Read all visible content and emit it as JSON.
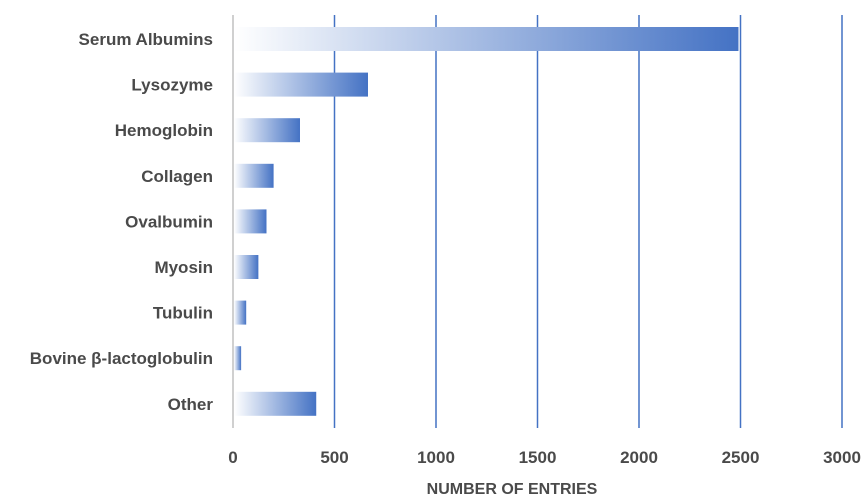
{
  "chart_data": {
    "type": "bar",
    "orientation": "horizontal",
    "categories": [
      "Serum Albumins",
      "Lysozyme",
      "Hemoglobin",
      "Collagen",
      "Ovalbumin",
      "Myosin",
      "Tubulin",
      "Bovine β-lactoglobulin",
      "Other"
    ],
    "values": [
      2490,
      665,
      330,
      200,
      165,
      125,
      65,
      40,
      410
    ],
    "title": "",
    "xlabel": "NUMBER OF ENTRIES",
    "ylabel": "",
    "xlim": [
      0,
      3000
    ],
    "xticks": [
      0,
      500,
      1000,
      1500,
      2000,
      2500,
      3000
    ],
    "xtick_labels": [
      "0",
      "500",
      "1000",
      "1500",
      "2000",
      "2500",
      "3000"
    ],
    "grid": "vertical",
    "legend": "none",
    "colors": {
      "bar_start": "#ffffff",
      "bar_end": "#4472c4",
      "gridline": "#4472c4",
      "axis": "#d0d0d0",
      "text": "#4a4a4a"
    }
  }
}
